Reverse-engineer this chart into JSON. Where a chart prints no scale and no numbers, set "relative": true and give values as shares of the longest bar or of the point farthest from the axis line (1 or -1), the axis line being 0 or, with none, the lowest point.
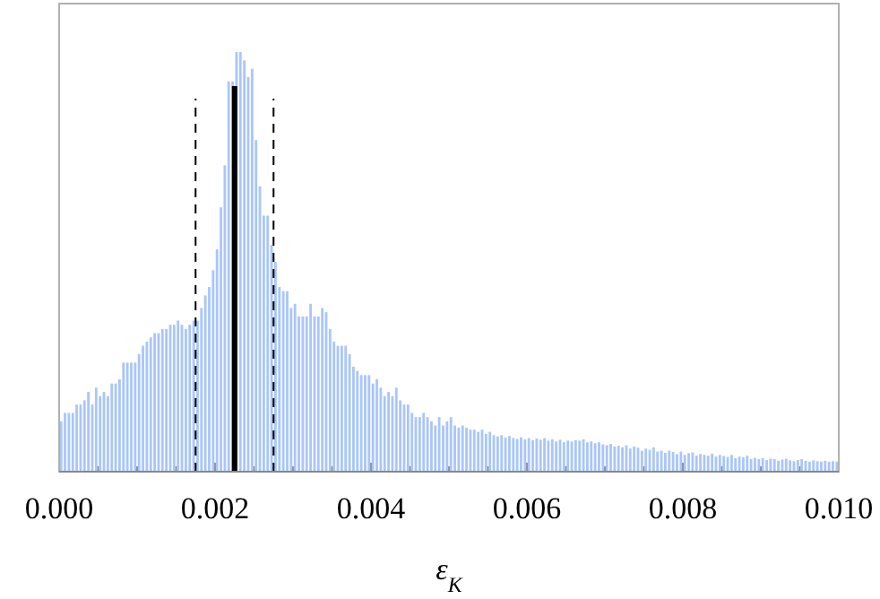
{
  "chart_data": {
    "type": "bar",
    "xlabel": "ε$_{K}$",
    "relative": true,
    "color": "#a9c6fb",
    "xlim": [
      0,
      0.01
    ],
    "xticks": [
      {
        "value": 0,
        "label": "0.000"
      },
      {
        "value": 0.0005,
        "label": null
      },
      {
        "value": 0.001,
        "label": null
      },
      {
        "value": 0.0015,
        "label": null
      },
      {
        "value": 0.002,
        "label": "0.002"
      },
      {
        "value": 0.0025,
        "label": null
      },
      {
        "value": 0.003,
        "label": null
      },
      {
        "value": 0.0035,
        "label": null
      },
      {
        "value": 0.004,
        "label": "0.004"
      },
      {
        "value": 0.0045,
        "label": null
      },
      {
        "value": 0.005,
        "label": null
      },
      {
        "value": 0.0055,
        "label": null
      },
      {
        "value": 0.006,
        "label": "0.006"
      },
      {
        "value": 0.0065,
        "label": null
      },
      {
        "value": 0.007,
        "label": null
      },
      {
        "value": 0.0075,
        "label": null
      },
      {
        "value": 0.008,
        "label": "0.008"
      },
      {
        "value": 0.0085,
        "label": null
      },
      {
        "value": 0.009,
        "label": null
      },
      {
        "value": 0.0095,
        "label": null
      },
      {
        "value": 0.01,
        "label": "0.010"
      }
    ],
    "x": [
      2.5e-05,
      7.5e-05,
      0.000125,
      0.000175,
      0.000225,
      0.000275,
      0.000325,
      0.000375,
      0.000425,
      0.000475,
      0.000525,
      0.000575,
      0.000625,
      0.000675,
      0.000725,
      0.000775,
      0.000825,
      0.000875,
      0.000925,
      0.000975,
      0.001025,
      0.001075,
      0.001125,
      0.001175,
      0.001225,
      0.001275,
      0.001325,
      0.001375,
      0.001425,
      0.001475,
      0.001525,
      0.001575,
      0.001625,
      0.001675,
      0.001725,
      0.001775,
      0.001825,
      0.001875,
      0.001925,
      0.001975,
      0.002025,
      0.002075,
      0.002125,
      0.002175,
      0.002225,
      0.002275,
      0.002325,
      0.002375,
      0.002425,
      0.002475,
      0.002525,
      0.002575,
      0.002625,
      0.002675,
      0.002725,
      0.002775,
      0.002825,
      0.002875,
      0.002925,
      0.002975,
      0.003025,
      0.003075,
      0.003125,
      0.003175,
      0.003225,
      0.003275,
      0.003325,
      0.003375,
      0.003425,
      0.003475,
      0.003525,
      0.003575,
      0.003625,
      0.003675,
      0.003725,
      0.003775,
      0.003825,
      0.003875,
      0.003925,
      0.003975,
      0.004025,
      0.004075,
      0.004125,
      0.004175,
      0.004225,
      0.004275,
      0.004325,
      0.004375,
      0.004425,
      0.004475,
      0.004525,
      0.004575,
      0.004625,
      0.004675,
      0.004725,
      0.004775,
      0.004825,
      0.004875,
      0.004925,
      0.004975,
      0.005025,
      0.005075,
      0.005125,
      0.005175,
      0.005225,
      0.005275,
      0.005325,
      0.005375,
      0.005425,
      0.005475,
      0.005525,
      0.005575,
      0.005625,
      0.005675,
      0.005725,
      0.005775,
      0.005825,
      0.005875,
      0.005925,
      0.005975,
      0.006025,
      0.006075,
      0.006125,
      0.006175,
      0.006225,
      0.006275,
      0.006325,
      0.006375,
      0.006425,
      0.006475,
      0.006525,
      0.006575,
      0.006625,
      0.006675,
      0.006725,
      0.006775,
      0.006825,
      0.006875,
      0.006925,
      0.006975,
      0.007025,
      0.007075,
      0.007125,
      0.007175,
      0.007225,
      0.007275,
      0.007325,
      0.007375,
      0.007425,
      0.007475,
      0.007525,
      0.007575,
      0.007625,
      0.007675,
      0.007725,
      0.007775,
      0.007825,
      0.007875,
      0.007925,
      0.007975,
      0.008025,
      0.008075,
      0.008125,
      0.008175,
      0.008225,
      0.008275,
      0.008325,
      0.008375,
      0.008425,
      0.008475,
      0.008525,
      0.008575,
      0.008625,
      0.008675,
      0.008725,
      0.008775,
      0.008825,
      0.008875,
      0.008925,
      0.008975,
      0.009025,
      0.009075,
      0.009125,
      0.009175,
      0.009225,
      0.009275,
      0.009325,
      0.009375,
      0.009425,
      0.009475,
      0.009525,
      0.009575,
      0.009625,
      0.009675,
      0.009725,
      0.009775,
      0.009825,
      0.009875,
      0.009925,
      0.009975
    ],
    "values": [
      0.12,
      0.14,
      0.14,
      0.14,
      0.16,
      0.16,
      0.17,
      0.19,
      0.16,
      0.2,
      0.18,
      0.19,
      0.18,
      0.21,
      0.21,
      0.22,
      0.26,
      0.26,
      0.26,
      0.26,
      0.28,
      0.3,
      0.31,
      0.32,
      0.33,
      0.33,
      0.34,
      0.34,
      0.35,
      0.35,
      0.36,
      0.35,
      0.34,
      0.35,
      0.36,
      0.36,
      0.39,
      0.42,
      0.44,
      0.48,
      0.53,
      0.63,
      0.73,
      0.93,
      0.93,
      1,
      1,
      0.98,
      0.94,
      0.96,
      0.79,
      0.68,
      0.61,
      0.61,
      0.54,
      0.5,
      0.44,
      0.43,
      0.43,
      0.39,
      0.4,
      0.37,
      0.37,
      0.37,
      0.4,
      0.37,
      0.37,
      0.39,
      0.38,
      0.34,
      0.31,
      0.3,
      0.3,
      0.3,
      0.28,
      0.25,
      0.24,
      0.23,
      0.23,
      0.23,
      0.21,
      0.22,
      0.2,
      0.18,
      0.19,
      0.18,
      0.2,
      0.17,
      0.16,
      0.16,
      0.14,
      0.13,
      0.13,
      0.14,
      0.13,
      0.12,
      0.11,
      0.13,
      0.11,
      0.12,
      0.13,
      0.11,
      0.105,
      0.11,
      0.105,
      0.1,
      0.1,
      0.095,
      0.1,
      0.09,
      0.095,
      0.087,
      0.084,
      0.087,
      0.081,
      0.085,
      0.08,
      0.078,
      0.082,
      0.077,
      0.08,
      0.075,
      0.079,
      0.076,
      0.08,
      0.074,
      0.077,
      0.072,
      0.076,
      0.07,
      0.074,
      0.072,
      0.075,
      0.074,
      0.077,
      0.07,
      0.072,
      0.068,
      0.07,
      0.065,
      0.063,
      0.066,
      0.06,
      0.062,
      0.058,
      0.063,
      0.055,
      0.06,
      0.057,
      0.05,
      0.055,
      0.052,
      0.058,
      0.048,
      0.05,
      0.045,
      0.05,
      0.047,
      0.042,
      0.048,
      0.04,
      0.044,
      0.046,
      0.038,
      0.042,
      0.04,
      0.038,
      0.043,
      0.036,
      0.04,
      0.037,
      0.035,
      0.04,
      0.032,
      0.036,
      0.034,
      0.038,
      0.03,
      0.033,
      0.03,
      0.032,
      0.028,
      0.031,
      0.03,
      0.026,
      0.029,
      0.031,
      0.027,
      0.025,
      0.028,
      0.03,
      0.026,
      0.024,
      0.027,
      0.025,
      0.024,
      0.026,
      0.024,
      0.025,
      0.024
    ],
    "ref_lines": [
      {
        "axis": "x",
        "value": 0.00225,
        "color": "#000000",
        "line_style": "solid"
      },
      {
        "axis": "x",
        "value": 0.00175,
        "color": "#000000",
        "line_style": "dashed"
      },
      {
        "axis": "x",
        "value": 0.00275,
        "color": "#000000",
        "line_style": "dashed"
      }
    ]
  }
}
